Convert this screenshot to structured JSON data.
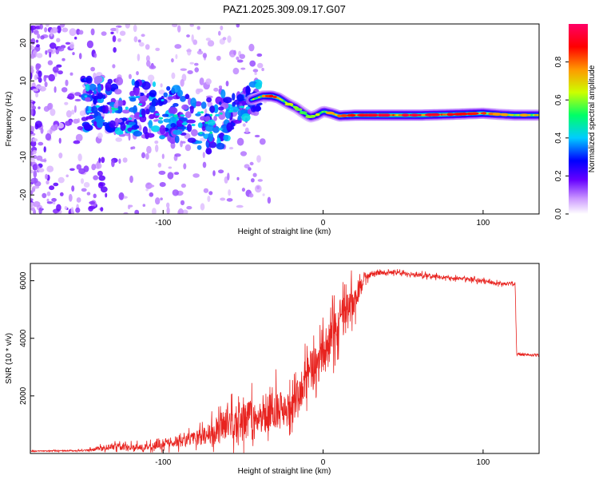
{
  "title": "PAZ1.2025.309.09.17.G07",
  "chart_data": [
    {
      "type": "heatmap",
      "name": "spectrogram",
      "xlabel": "Height of straight line (km)",
      "ylabel": "Frequency (Hz)",
      "xlim": [
        -183,
        135
      ],
      "ylim": [
        -25,
        25
      ],
      "xticks": [
        -100,
        0,
        100
      ],
      "yticks": [
        -20,
        -10,
        0,
        10,
        20
      ],
      "colorbar": {
        "label": "Normalized spectral amplitude",
        "range": [
          0,
          1
        ],
        "ticks": [
          0.0,
          0.2,
          0.4,
          0.6,
          0.8
        ],
        "colors": [
          "#ffffff",
          "#cc99ff",
          "#6600ff",
          "#0000ff",
          "#00ccff",
          "#00ff66",
          "#ccff00",
          "#ff9900",
          "#ff0000",
          "#ff0066"
        ]
      },
      "ridge": {
        "x": [
          -145,
          -120,
          -100,
          -85,
          -70,
          -60,
          -52,
          -45,
          -38,
          -32,
          -28,
          -22,
          -17,
          -12,
          -8,
          -4,
          0,
          5,
          10,
          20,
          40,
          60,
          80,
          100,
          110,
          120,
          135
        ],
        "freq": [
          4,
          3,
          2,
          0,
          -2,
          1,
          3,
          5,
          6,
          6,
          5.5,
          4,
          3,
          1.5,
          0.5,
          1,
          2,
          1.5,
          0.8,
          1,
          1,
          1,
          1.2,
          1.5,
          1.2,
          1,
          1
        ],
        "amplitude": [
          0.3,
          0.35,
          0.35,
          0.3,
          0.35,
          0.4,
          0.45,
          0.55,
          0.7,
          0.85,
          0.75,
          0.6,
          0.55,
          0.5,
          0.55,
          0.6,
          0.65,
          0.7,
          0.75,
          0.85,
          0.9,
          0.9,
          0.85,
          0.8,
          0.7,
          0.7,
          0.7
        ]
      }
    },
    {
      "type": "line",
      "name": "snr",
      "xlabel": "Height of straight line (km)",
      "ylabel": "SNR (10 * v/v)",
      "xlim": [
        -183,
        135
      ],
      "ylim": [
        0,
        6600
      ],
      "xticks": [
        -100,
        0,
        100
      ],
      "yticks": [
        2000,
        4000,
        6000
      ],
      "color": "#e8231f",
      "envelope": {
        "x": [
          -183,
          -150,
          -130,
          -110,
          -100,
          -80,
          -60,
          -50,
          -40,
          -30,
          -20,
          -10,
          0,
          10,
          20,
          25,
          30,
          40,
          60,
          80,
          100,
          110,
          120,
          121,
          135
        ],
        "mean": [
          80,
          100,
          250,
          200,
          350,
          500,
          1000,
          1300,
          1200,
          1600,
          1500,
          2700,
          3300,
          4600,
          5400,
          6000,
          6250,
          6300,
          6200,
          6100,
          6000,
          5900,
          5900,
          3450,
          3400
        ],
        "spread": [
          20,
          30,
          150,
          150,
          200,
          300,
          700,
          900,
          700,
          900,
          700,
          900,
          900,
          900,
          700,
          250,
          120,
          80,
          100,
          80,
          80,
          80,
          80,
          50,
          50
        ]
      }
    }
  ]
}
